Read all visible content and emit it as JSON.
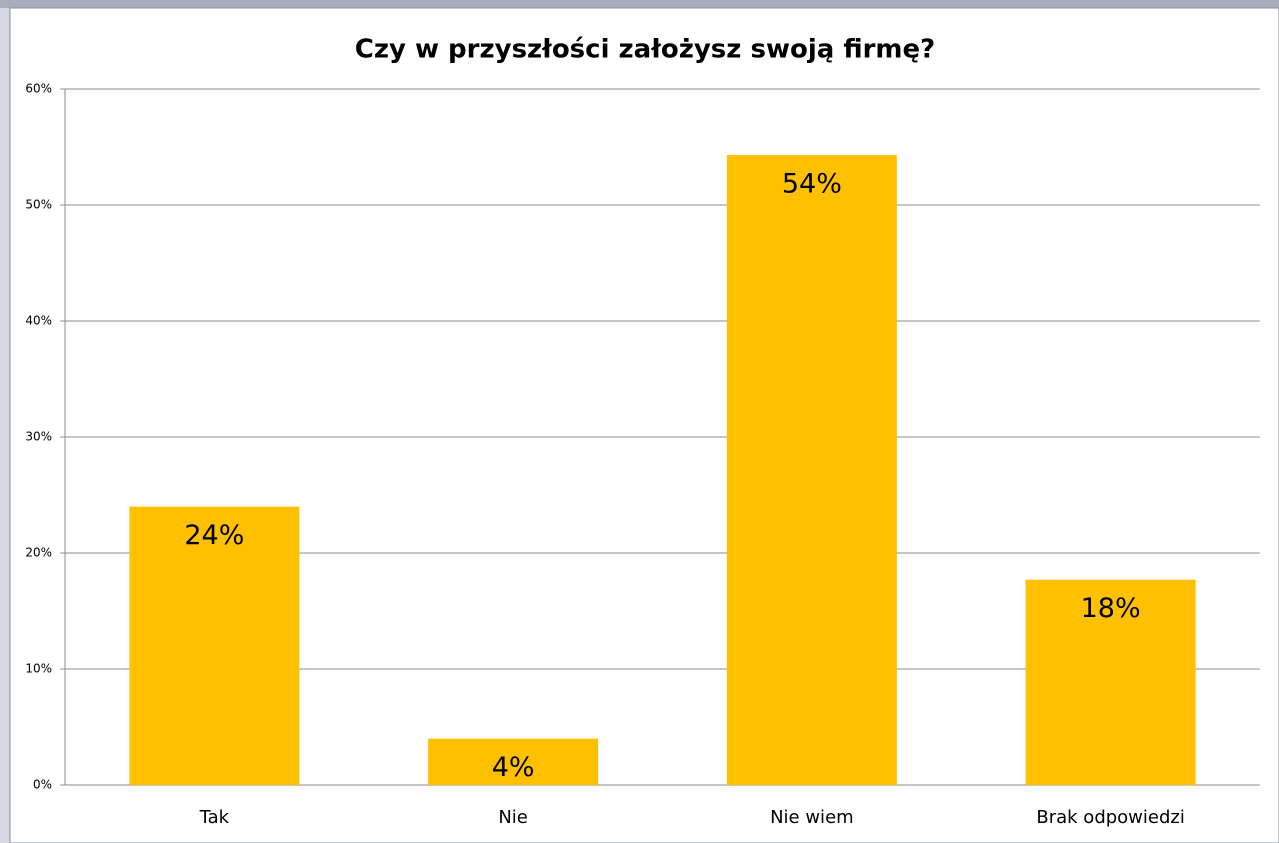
{
  "chart_data": {
    "type": "bar",
    "title": "Czy w przyszłości założysz swoją firmę?",
    "categories": [
      "Tak",
      "Nie",
      "Nie wiem",
      "Brak odpowiedzi"
    ],
    "values": [
      24,
      4,
      54.3,
      17.7
    ],
    "value_labels": [
      "24%",
      "4%",
      "54%",
      "18%"
    ],
    "color": "#ffc000",
    "ylim": [
      0,
      60
    ],
    "yticks": [
      {
        "value": 0,
        "label": "0%"
      },
      {
        "value": 10,
        "label": "10%"
      },
      {
        "value": 20,
        "label": "20%"
      },
      {
        "value": 30,
        "label": "30%"
      },
      {
        "value": 40,
        "label": "40%"
      },
      {
        "value": 50,
        "label": "50%"
      },
      {
        "value": 60,
        "label": "60%"
      }
    ],
    "grid": true
  }
}
